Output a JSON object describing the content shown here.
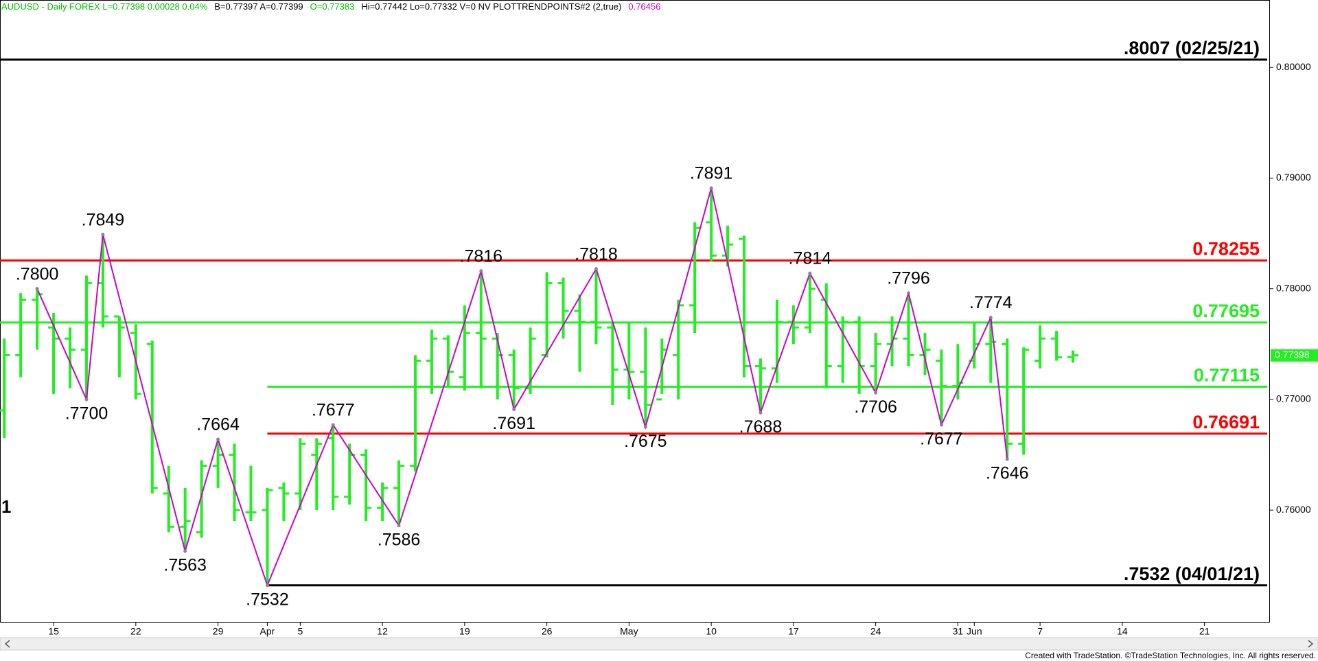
{
  "chart_data": {
    "type": "ohlc",
    "header": [
      {
        "text": "AUDUSD - Daily  FOREX  L=0.77398  0.00028  0.04%",
        "color": "#00c000"
      },
      {
        "text": "B=0.77397  A=0.77399",
        "color": "#000000"
      },
      {
        "text": "O=0.77383",
        "color": "#00c000"
      },
      {
        "text": "Hi=0.77442  Lo=0.77332  V=0  NV  PLOTTRENDPOINTS#2 (2,true)",
        "color": "#000000"
      },
      {
        "text": "0.76456",
        "color": "#cc00cc"
      }
    ],
    "footer": "Created with TradeStation. ©TradeStation Technologies, Inc. All rights reserved.",
    "edge_label": "1",
    "color": "#22ee22",
    "xlim": [
      -0.26,
      76.94
    ],
    "ylim": [
      0.7499,
      0.8048
    ],
    "xticks": [
      {
        "value": 3,
        "label": "15"
      },
      {
        "value": 8,
        "label": "22"
      },
      {
        "value": 13,
        "label": "29"
      },
      {
        "value": 16,
        "label": "Apr"
      },
      {
        "value": 18,
        "label": "5"
      },
      {
        "value": 23,
        "label": "12"
      },
      {
        "value": 28,
        "label": "19"
      },
      {
        "value": 33,
        "label": "26"
      },
      {
        "value": 38,
        "label": "May"
      },
      {
        "value": 43,
        "label": "10"
      },
      {
        "value": 48,
        "label": "17"
      },
      {
        "value": 53,
        "label": "24"
      },
      {
        "value": 58,
        "label": "31"
      },
      {
        "value": 59,
        "label": "Jun"
      },
      {
        "value": 63,
        "label": "7"
      },
      {
        "value": 68,
        "label": "14"
      },
      {
        "value": 73,
        "label": "21"
      }
    ],
    "yticks": [
      {
        "value": 0.8,
        "label": "0.80000"
      },
      {
        "value": 0.79,
        "label": "0.79000"
      },
      {
        "value": 0.78,
        "label": "0.78000"
      },
      {
        "value": 0.77,
        "label": "0.77000"
      },
      {
        "value": 0.76,
        "label": "0.76000"
      }
    ],
    "last": 0.77398,
    "last_color": "#22ee22",
    "bars": [
      {
        "o": 0.769,
        "h": 0.7755,
        "l": 0.7665,
        "c": 0.774
      },
      {
        "o": 0.774,
        "h": 0.7796,
        "l": 0.772,
        "c": 0.779
      },
      {
        "o": 0.779,
        "h": 0.78,
        "l": 0.7745,
        "c": 0.7795
      },
      {
        "o": 0.7765,
        "h": 0.7778,
        "l": 0.7705,
        "c": 0.7755
      },
      {
        "o": 0.7755,
        "h": 0.7765,
        "l": 0.771,
        "c": 0.7745
      },
      {
        "o": 0.7745,
        "h": 0.7812,
        "l": 0.77,
        "c": 0.7805
      },
      {
        "o": 0.7805,
        "h": 0.7849,
        "l": 0.7765,
        "c": 0.7775
      },
      {
        "o": 0.7775,
        "h": 0.7775,
        "l": 0.772,
        "c": 0.7765
      },
      {
        "o": 0.776,
        "h": 0.7768,
        "l": 0.77,
        "c": 0.7705
      },
      {
        "o": 0.775,
        "h": 0.7753,
        "l": 0.7615,
        "c": 0.762
      },
      {
        "o": 0.7615,
        "h": 0.764,
        "l": 0.758,
        "c": 0.7585
      },
      {
        "o": 0.7585,
        "h": 0.762,
        "l": 0.7563,
        "c": 0.759
      },
      {
        "o": 0.758,
        "h": 0.7645,
        "l": 0.7575,
        "c": 0.764
      },
      {
        "o": 0.764,
        "h": 0.7664,
        "l": 0.762,
        "c": 0.765
      },
      {
        "o": 0.765,
        "h": 0.766,
        "l": 0.759,
        "c": 0.76
      },
      {
        "o": 0.7598,
        "h": 0.764,
        "l": 0.759,
        "c": 0.7598
      },
      {
        "o": 0.76,
        "h": 0.762,
        "l": 0.7532,
        "c": 0.7618
      },
      {
        "o": 0.762,
        "h": 0.7625,
        "l": 0.759,
        "c": 0.7615
      },
      {
        "o": 0.7615,
        "h": 0.7665,
        "l": 0.76,
        "c": 0.766
      },
      {
        "o": 0.765,
        "h": 0.7665,
        "l": 0.76,
        "c": 0.766
      },
      {
        "o": 0.7665,
        "h": 0.7677,
        "l": 0.76,
        "c": 0.7612
      },
      {
        "o": 0.7612,
        "h": 0.766,
        "l": 0.7605,
        "c": 0.765
      },
      {
        "o": 0.765,
        "h": 0.7655,
        "l": 0.759,
        "c": 0.7602
      },
      {
        "o": 0.7602,
        "h": 0.7625,
        "l": 0.759,
        "c": 0.762
      },
      {
        "o": 0.762,
        "h": 0.7645,
        "l": 0.7586,
        "c": 0.764
      },
      {
        "o": 0.764,
        "h": 0.774,
        "l": 0.7635,
        "c": 0.7735
      },
      {
        "o": 0.7735,
        "h": 0.7763,
        "l": 0.7705,
        "c": 0.7755
      },
      {
        "o": 0.7755,
        "h": 0.7758,
        "l": 0.7712,
        "c": 0.7725
      },
      {
        "o": 0.772,
        "h": 0.7785,
        "l": 0.7708,
        "c": 0.776
      },
      {
        "o": 0.776,
        "h": 0.7816,
        "l": 0.771,
        "c": 0.7755
      },
      {
        "o": 0.7755,
        "h": 0.776,
        "l": 0.77,
        "c": 0.774
      },
      {
        "o": 0.774,
        "h": 0.7745,
        "l": 0.7691,
        "c": 0.771
      },
      {
        "o": 0.771,
        "h": 0.7765,
        "l": 0.7705,
        "c": 0.7755
      },
      {
        "o": 0.774,
        "h": 0.7815,
        "l": 0.7738,
        "c": 0.7805
      },
      {
        "o": 0.7805,
        "h": 0.781,
        "l": 0.7755,
        "c": 0.778
      },
      {
        "o": 0.778,
        "h": 0.7795,
        "l": 0.7725,
        "c": 0.777
      },
      {
        "o": 0.777,
        "h": 0.7818,
        "l": 0.775,
        "c": 0.7765
      },
      {
        "o": 0.7765,
        "h": 0.777,
        "l": 0.7695,
        "c": 0.7727
      },
      {
        "o": 0.7727,
        "h": 0.777,
        "l": 0.77,
        "c": 0.7725
      },
      {
        "o": 0.7725,
        "h": 0.7765,
        "l": 0.7675,
        "c": 0.7695
      },
      {
        "o": 0.77,
        "h": 0.7755,
        "l": 0.7705,
        "c": 0.7745
      },
      {
        "o": 0.774,
        "h": 0.779,
        "l": 0.77,
        "c": 0.7785
      },
      {
        "o": 0.7785,
        "h": 0.786,
        "l": 0.776,
        "c": 0.7855
      },
      {
        "o": 0.786,
        "h": 0.7891,
        "l": 0.7825,
        "c": 0.783
      },
      {
        "o": 0.783,
        "h": 0.7857,
        "l": 0.782,
        "c": 0.784
      },
      {
        "o": 0.7845,
        "h": 0.7848,
        "l": 0.772,
        "c": 0.773
      },
      {
        "o": 0.773,
        "h": 0.7737,
        "l": 0.7688,
        "c": 0.7728
      },
      {
        "o": 0.7728,
        "h": 0.779,
        "l": 0.7715,
        "c": 0.777
      },
      {
        "o": 0.777,
        "h": 0.7785,
        "l": 0.775,
        "c": 0.7765
      },
      {
        "o": 0.7765,
        "h": 0.7814,
        "l": 0.776,
        "c": 0.78
      },
      {
        "o": 0.779,
        "h": 0.7805,
        "l": 0.771,
        "c": 0.773
      },
      {
        "o": 0.773,
        "h": 0.7775,
        "l": 0.7715,
        "c": 0.777
      },
      {
        "o": 0.777,
        "h": 0.7775,
        "l": 0.7705,
        "c": 0.773
      },
      {
        "o": 0.773,
        "h": 0.776,
        "l": 0.7706,
        "c": 0.775
      },
      {
        "o": 0.775,
        "h": 0.7775,
        "l": 0.773,
        "c": 0.7755
      },
      {
        "o": 0.7755,
        "h": 0.7796,
        "l": 0.773,
        "c": 0.774
      },
      {
        "o": 0.774,
        "h": 0.776,
        "l": 0.7722,
        "c": 0.7745
      },
      {
        "o": 0.7735,
        "h": 0.7745,
        "l": 0.7677,
        "c": 0.7712
      },
      {
        "o": 0.7712,
        "h": 0.775,
        "l": 0.77,
        "c": 0.7715
      },
      {
        "o": 0.7735,
        "h": 0.777,
        "l": 0.7728,
        "c": 0.775
      },
      {
        "o": 0.775,
        "h": 0.7774,
        "l": 0.7715,
        "c": 0.7752
      },
      {
        "o": 0.775,
        "h": 0.7755,
        "l": 0.7646,
        "c": 0.766
      },
      {
        "o": 0.766,
        "h": 0.7747,
        "l": 0.765,
        "c": 0.7745
      },
      {
        "o": 0.7735,
        "h": 0.7767,
        "l": 0.7728,
        "c": 0.7755
      },
      {
        "o": 0.7755,
        "h": 0.7762,
        "l": 0.7735,
        "c": 0.7738
      },
      {
        "o": 0.77383,
        "h": 0.77442,
        "l": 0.77332,
        "c": 0.77398
      }
    ],
    "swing_color": "#cc00cc",
    "swings": [
      {
        "i": 2,
        "value": 0.78,
        "label": ".7800"
      },
      {
        "i": 5,
        "value": 0.77,
        "label": ".7700"
      },
      {
        "i": 6,
        "value": 0.7849,
        "label": ".7849"
      },
      {
        "i": 11,
        "value": 0.7563,
        "label": ".7563"
      },
      {
        "i": 13,
        "value": 0.7664,
        "label": ".7664"
      },
      {
        "i": 16,
        "value": 0.7532,
        "label": ".7532"
      },
      {
        "i": 20,
        "value": 0.7677,
        "label": ".7677"
      },
      {
        "i": 24,
        "value": 0.7586,
        "label": ".7586"
      },
      {
        "i": 29,
        "value": 0.7816,
        "label": ".7816"
      },
      {
        "i": 31,
        "value": 0.7691,
        "label": ".7691"
      },
      {
        "i": 36,
        "value": 0.7818,
        "label": ".7818"
      },
      {
        "i": 39,
        "value": 0.7675,
        "label": ".7675"
      },
      {
        "i": 43,
        "value": 0.7891,
        "label": ".7891"
      },
      {
        "i": 46,
        "value": 0.7688,
        "label": ".7688"
      },
      {
        "i": 49,
        "value": 0.7814,
        "label": ".7814"
      },
      {
        "i": 53,
        "value": 0.7706,
        "label": ".7706"
      },
      {
        "i": 55,
        "value": 0.7796,
        "label": ".7796"
      },
      {
        "i": 57,
        "value": 0.7677,
        "label": ".7677"
      },
      {
        "i": 60,
        "value": 0.7774,
        "label": ".7774"
      },
      {
        "i": 61,
        "value": 0.7646,
        "label": ".7646"
      }
    ],
    "levels": [
      {
        "value": 0.8007,
        "label": ".8007 (02/25/21)",
        "color": "#000000",
        "text_color": "#000000"
      },
      {
        "value": 0.78255,
        "label": "0.78255",
        "color": "#ff0000",
        "text_color": "#ff0000"
      },
      {
        "value": 0.77695,
        "label": "0.77695",
        "color": "#22ee22",
        "text_color": "#22ee22"
      },
      {
        "value": 0.77115,
        "label": "0.77115",
        "color": "#22ee22",
        "text_color": "#22ee22",
        "from": 16
      },
      {
        "value": 0.76691,
        "label": "0.76691",
        "color": "#ff0000",
        "text_color": "#ff0000",
        "from": 16
      },
      {
        "value": 0.7532,
        "label": ".7532 (04/01/21)",
        "color": "#000000",
        "text_color": "#000000",
        "from": 16
      }
    ]
  }
}
